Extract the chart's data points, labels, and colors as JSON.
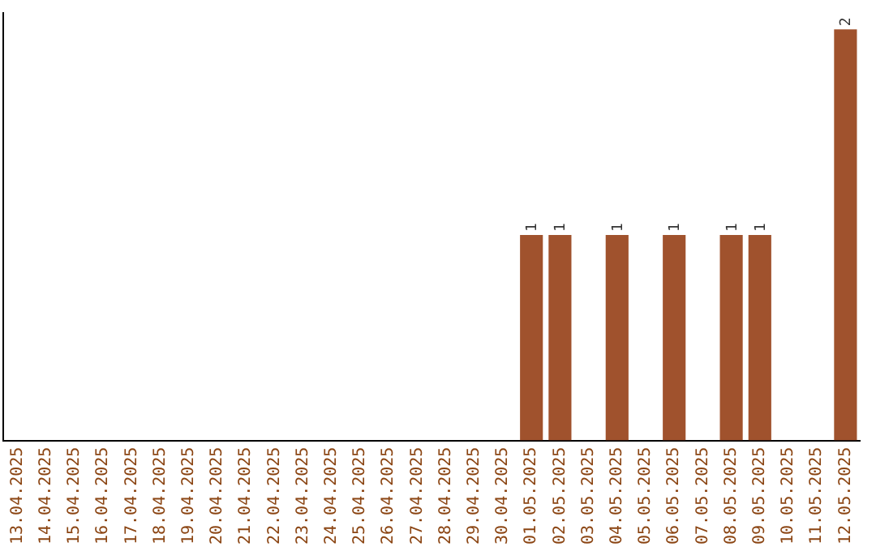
{
  "chart_data": {
    "type": "bar",
    "categories": [
      "13.04.2025",
      "14.04.2025",
      "15.04.2025",
      "16.04.2025",
      "17.04.2025",
      "18.04.2025",
      "19.04.2025",
      "20.04.2025",
      "21.04.2025",
      "22.04.2025",
      "23.04.2025",
      "24.04.2025",
      "25.04.2025",
      "26.04.2025",
      "27.04.2025",
      "28.04.2025",
      "29.04.2025",
      "30.04.2025",
      "01.05.2025",
      "02.05.2025",
      "03.05.2025",
      "04.05.2025",
      "05.05.2025",
      "06.05.2025",
      "07.05.2025",
      "08.05.2025",
      "09.05.2025",
      "10.05.2025",
      "11.05.2025",
      "12.05.2025"
    ],
    "values": [
      null,
      null,
      null,
      null,
      null,
      null,
      null,
      null,
      null,
      null,
      null,
      null,
      null,
      null,
      null,
      null,
      null,
      null,
      1,
      1,
      null,
      1,
      null,
      1,
      null,
      1,
      1,
      null,
      null,
      2
    ],
    "data_labels": true,
    "color": "#a0522d",
    "grid": false,
    "legend": false,
    "tick_labels": "x"
  }
}
